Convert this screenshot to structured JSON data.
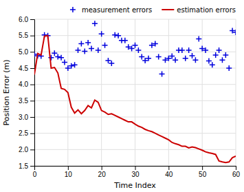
{
  "chart_data": {
    "type": "line",
    "xlabel": "Time Index",
    "ylabel": "Position Error (m)",
    "x": [
      0,
      1,
      2,
      3,
      4,
      5,
      6,
      7,
      8,
      9,
      10,
      11,
      12,
      13,
      14,
      15,
      16,
      17,
      18,
      19,
      20,
      21,
      22,
      23,
      24,
      25,
      26,
      27,
      28,
      29,
      30,
      31,
      32,
      33,
      34,
      35,
      36,
      37,
      38,
      39,
      40,
      41,
      42,
      43,
      44,
      45,
      46,
      47,
      48,
      49,
      50,
      51,
      52,
      53,
      54,
      55,
      56,
      57,
      58,
      59,
      60
    ],
    "series": [
      {
        "name": "measurement errors",
        "type": "scatter",
        "marker": "plus",
        "color": "#0000dd",
        "values": [
          4.93,
          4.88,
          4.87,
          5.52,
          5.5,
          4.82,
          4.96,
          4.85,
          4.82,
          4.68,
          4.5,
          4.57,
          4.6,
          5.05,
          5.25,
          5.02,
          5.28,
          5.1,
          5.87,
          5.05,
          5.55,
          5.2,
          4.73,
          4.65,
          5.52,
          5.5,
          5.35,
          5.35,
          5.15,
          5.1,
          5.2,
          5.05,
          4.85,
          4.73,
          4.8,
          5.2,
          5.25,
          4.85,
          4.32,
          4.75,
          4.8,
          4.87,
          4.75,
          5.05,
          5.05,
          4.8,
          5.05,
          4.88,
          4.75,
          5.4,
          5.1,
          5.05,
          4.72,
          4.6,
          4.9,
          5.05,
          4.75,
          4.9,
          4.5,
          5.65,
          5.6
        ]
      },
      {
        "name": "estimation errors",
        "type": "line",
        "color": "#cc0000",
        "values": [
          4.3,
          4.95,
          4.9,
          5.48,
          5.5,
          4.5,
          4.52,
          4.35,
          3.88,
          3.85,
          3.75,
          3.3,
          3.12,
          3.22,
          3.1,
          3.2,
          3.35,
          3.28,
          3.52,
          3.45,
          3.2,
          3.15,
          3.08,
          3.1,
          3.05,
          3.0,
          2.95,
          2.9,
          2.85,
          2.85,
          2.78,
          2.72,
          2.68,
          2.62,
          2.58,
          2.55,
          2.5,
          2.45,
          2.4,
          2.35,
          2.3,
          2.22,
          2.18,
          2.15,
          2.1,
          2.1,
          2.05,
          2.08,
          2.06,
          2.02,
          1.98,
          1.93,
          1.9,
          1.88,
          1.85,
          1.65,
          1.62,
          1.6,
          1.62,
          1.75,
          1.8
        ]
      }
    ],
    "xlim": [
      0,
      60
    ],
    "ylim": [
      1.5,
      6.0
    ],
    "xticks": [
      0,
      10,
      20,
      30,
      40,
      50,
      60
    ],
    "yticks": [
      1.5,
      {
        "value": 2,
        "label": "2.0"
      },
      2.5,
      {
        "value": 3,
        "label": "3.0"
      },
      3.5,
      {
        "value": 4,
        "label": "4.0"
      },
      4.5,
      {
        "value": 5,
        "label": "5.0"
      },
      5.5,
      {
        "value": 6,
        "label": "6.0"
      }
    ],
    "grid": true,
    "legend": "upper right"
  }
}
